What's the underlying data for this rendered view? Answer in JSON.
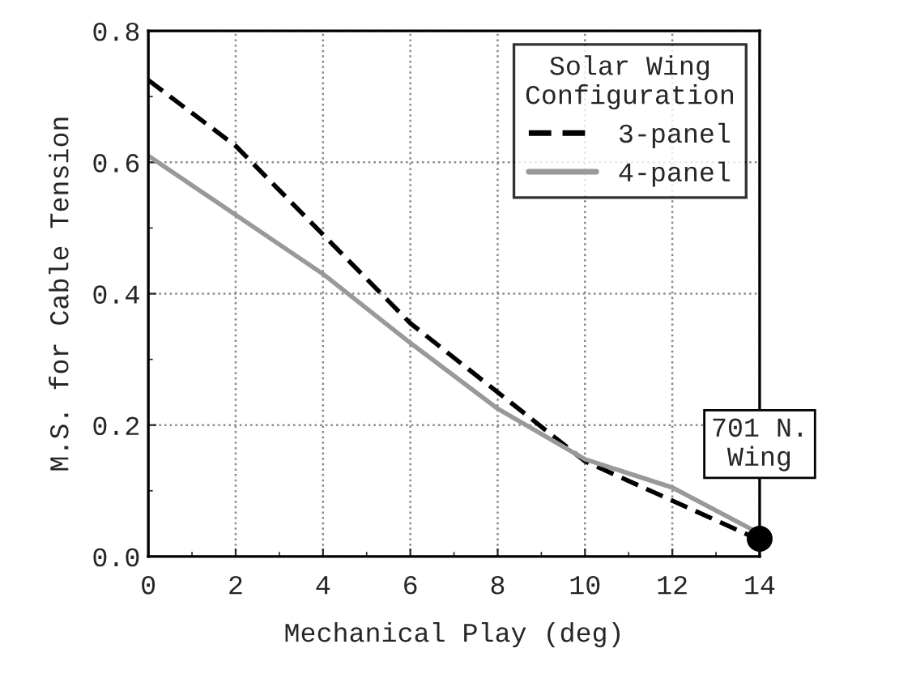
{
  "chart_data": {
    "type": "line",
    "xlabel": "Mechanical Play (deg)",
    "ylabel": "M.S. for Cable Tension",
    "legend_title": "Solar Wing\nConfiguration",
    "x": [
      0,
      2,
      4,
      6,
      8,
      10,
      12,
      14
    ],
    "series": [
      {
        "name": "3-panel",
        "color": "#000000",
        "line_style": "dashed",
        "values": [
          0.725,
          0.625,
          0.49,
          0.355,
          0.25,
          0.145,
          0.085,
          0.025
        ]
      },
      {
        "name": "4-panel",
        "color": "#999999",
        "line_style": "solid",
        "values": [
          0.61,
          0.52,
          0.43,
          0.325,
          0.225,
          0.148,
          0.105,
          0.035
        ]
      },
      {
        "type": "scatter",
        "color": "#000000",
        "marker": "circle",
        "x": [
          14
        ],
        "values": [
          0.027
        ]
      }
    ],
    "annotations": [
      {
        "text": "701 N.\nWing",
        "x": 14,
        "y": 0.027
      }
    ],
    "xlim": [
      0,
      14
    ],
    "xticks": [
      0,
      2,
      4,
      6,
      8,
      10,
      12,
      14
    ],
    "ylim": [
      0,
      0.8
    ],
    "yticks": [
      {
        "value": 0,
        "label": "0.0"
      },
      0.2,
      0.4,
      0.6,
      0.8
    ],
    "grid": true,
    "legend": "top right",
    "marker": "none"
  }
}
